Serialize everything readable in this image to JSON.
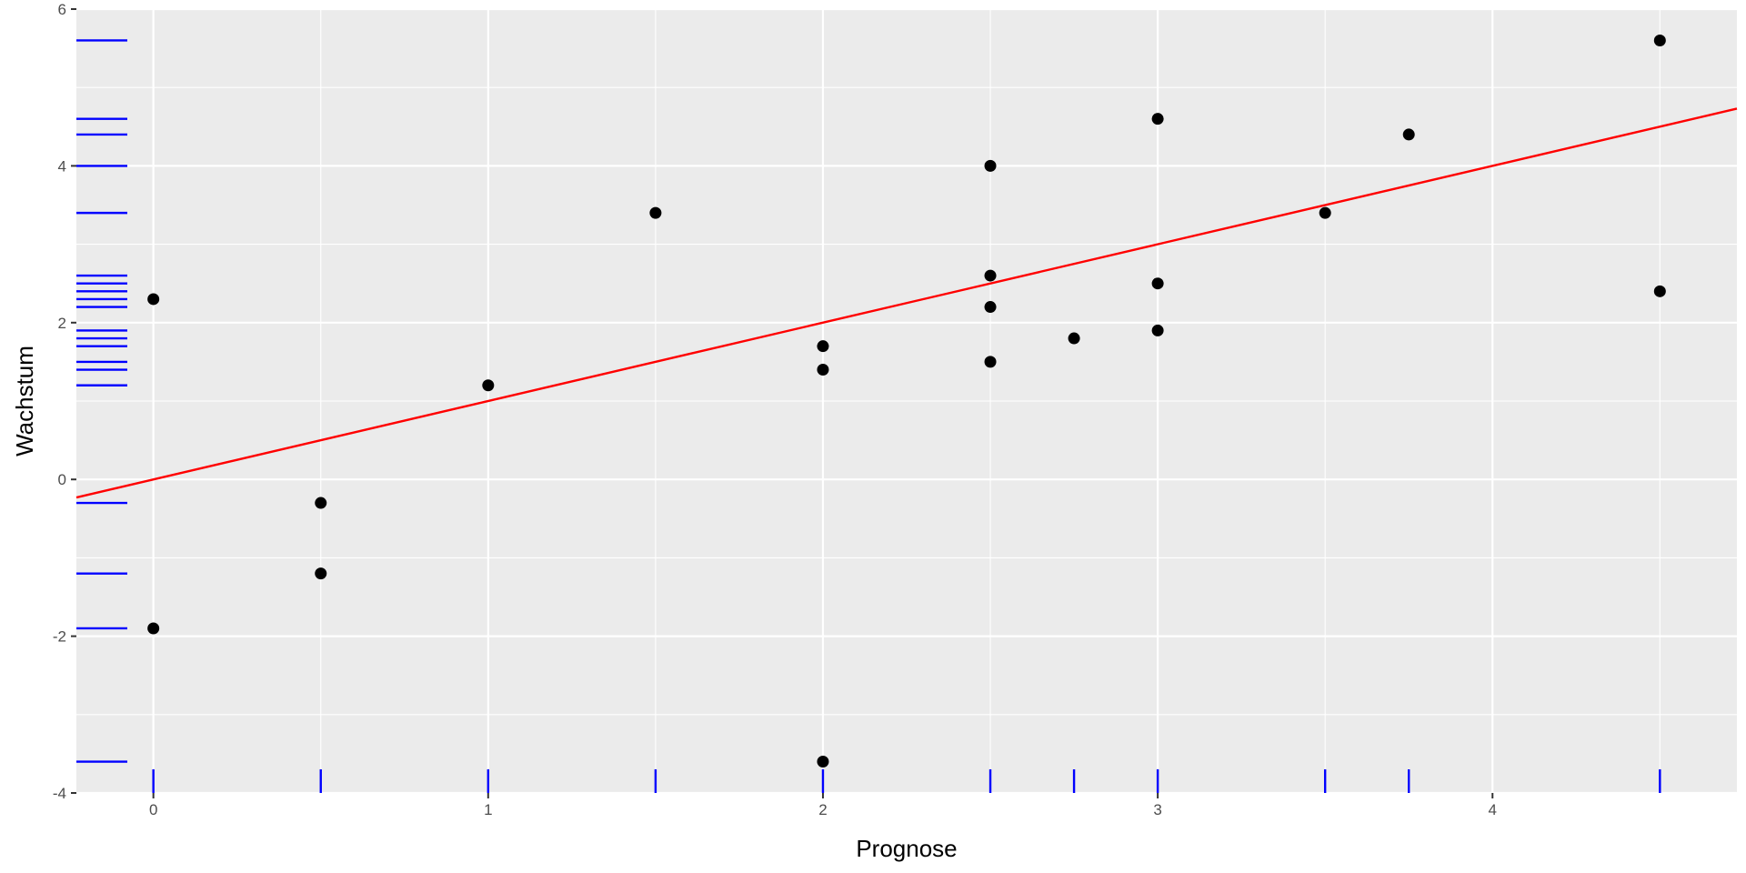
{
  "chart_data": {
    "type": "scatter",
    "title": "",
    "xlabel": "Prognose",
    "ylabel": "Wachstum",
    "xlim": [
      -0.23,
      4.73
    ],
    "ylim": [
      -4.0,
      6.0
    ],
    "x_ticks": [
      0,
      1,
      2,
      3,
      4
    ],
    "y_ticks": [
      -4,
      -2,
      0,
      2,
      4,
      6
    ],
    "x_tick_labels": [
      "0",
      "1",
      "2",
      "3",
      "4"
    ],
    "y_tick_labels": [
      "-4",
      "-2",
      "0",
      "2",
      "4",
      "6"
    ],
    "grid": true,
    "points": [
      {
        "x": 0,
        "y": 2.3
      },
      {
        "x": 0,
        "y": -1.9
      },
      {
        "x": 0.5,
        "y": -0.3
      },
      {
        "x": 0.5,
        "y": -1.2
      },
      {
        "x": 1.0,
        "y": 1.2
      },
      {
        "x": 1.5,
        "y": 3.4
      },
      {
        "x": 2.0,
        "y": 1.7
      },
      {
        "x": 2.0,
        "y": 1.4
      },
      {
        "x": 2.0,
        "y": -3.6
      },
      {
        "x": 2.5,
        "y": 4.0
      },
      {
        "x": 2.5,
        "y": 2.6
      },
      {
        "x": 2.5,
        "y": 2.2
      },
      {
        "x": 2.5,
        "y": 1.5
      },
      {
        "x": 2.75,
        "y": 1.8
      },
      {
        "x": 3.0,
        "y": 4.6
      },
      {
        "x": 3.0,
        "y": 2.5
      },
      {
        "x": 3.0,
        "y": 1.9
      },
      {
        "x": 3.5,
        "y": 3.4
      },
      {
        "x": 3.75,
        "y": 4.4
      },
      {
        "x": 4.5,
        "y": 5.6
      },
      {
        "x": 4.5,
        "y": 2.4
      }
    ],
    "reference_line": {
      "intercept": 0,
      "slope": 1
    },
    "rug_x": [
      0,
      0.5,
      1.0,
      1.5,
      2.0,
      2.5,
      2.75,
      3.0,
      3.5,
      3.75,
      4.5
    ],
    "rug_y": [
      5.6,
      4.6,
      4.4,
      4.0,
      3.4,
      2.6,
      2.5,
      2.4,
      2.3,
      2.2,
      1.9,
      1.8,
      1.7,
      1.5,
      1.4,
      1.2,
      -0.3,
      -1.2,
      -1.9,
      -3.6
    ],
    "colors": {
      "panel_background": "#ebebeb",
      "grid_major": "#ffffff",
      "points": "#000000",
      "line": "#ff0000",
      "rug": "#0000ff"
    }
  }
}
